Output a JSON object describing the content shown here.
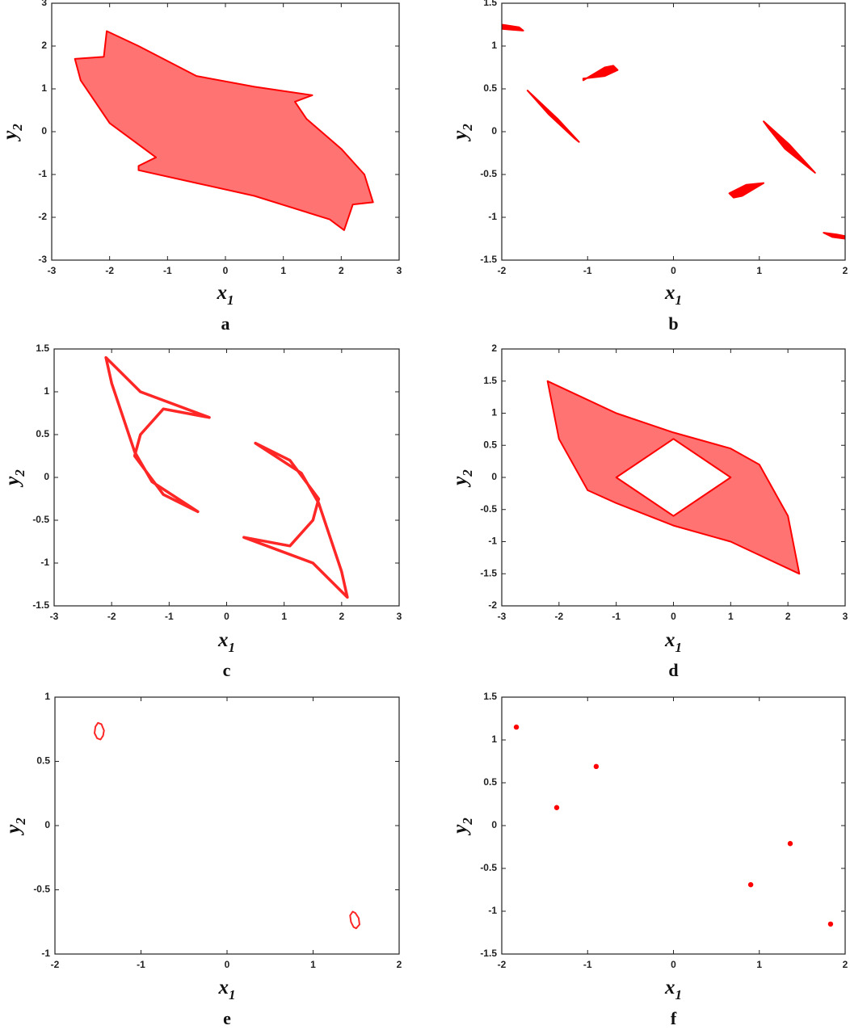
{
  "chart_data": [
    {
      "type": "scatter",
      "label": "a",
      "xlabel": [
        "x",
        "1"
      ],
      "ylabel": [
        "y",
        "2"
      ],
      "xlim": [
        -3,
        3
      ],
      "ylim": [
        -3,
        3
      ],
      "xticks": [
        -3,
        -2,
        -1,
        0,
        1,
        2,
        3
      ],
      "yticks": [
        -3,
        -2,
        -1,
        0,
        1,
        2,
        3
      ],
      "series": [
        {
          "color": "#ff0000",
          "mode": "area",
          "x": [
            -2.6,
            -2.1,
            -2.05,
            -1.5,
            -0.5,
            0.5,
            1.5,
            1.2,
            1.4,
            2.0,
            2.4,
            2.55,
            2.2,
            2.05,
            1.8,
            0.5,
            -0.5,
            -1.5,
            -1.5,
            -1.2,
            -2.0,
            -2.5
          ],
          "y": [
            1.7,
            1.75,
            2.35,
            2.0,
            1.3,
            1.05,
            0.85,
            0.7,
            0.3,
            -0.4,
            -1.0,
            -1.65,
            -1.7,
            -2.3,
            -2.05,
            -1.5,
            -1.2,
            -0.9,
            -0.8,
            -0.6,
            0.2,
            1.2
          ]
        }
      ]
    },
    {
      "type": "scatter",
      "label": "b",
      "xlabel": [
        "x",
        "1"
      ],
      "ylabel": [
        "y",
        "2"
      ],
      "xlim": [
        -2,
        2
      ],
      "ylim": [
        -1.5,
        1.5
      ],
      "xticks": [
        -2,
        -1,
        0,
        1,
        2
      ],
      "yticks": [
        -1.5,
        -1,
        -0.5,
        0,
        0.5,
        1,
        1.5
      ],
      "series": [
        {
          "color": "#ff0000",
          "mode": "solid",
          "x": [
            -2,
            -1.8,
            -1.75,
            -2,
            null,
            -1.05,
            -0.8,
            -0.7,
            -0.65,
            -0.8,
            -1.05,
            null,
            -1.7,
            -1.35,
            -1.1,
            -1.15,
            -1.45,
            null,
            1.05,
            1.35,
            1.65,
            1.3,
            1.1,
            null,
            0.65,
            0.85,
            1.05,
            0.8,
            0.7,
            null,
            1.75,
            1.9,
            2,
            2,
            1.85
          ],
          "y": [
            1.25,
            1.22,
            1.18,
            1.2,
            null,
            0.6,
            0.75,
            0.77,
            0.72,
            0.65,
            0.62,
            null,
            0.48,
            0.15,
            -0.12,
            -0.08,
            0.2,
            null,
            0.12,
            -0.15,
            -0.48,
            -0.2,
            0.05,
            null,
            -0.72,
            -0.62,
            -0.6,
            -0.75,
            -0.77,
            null,
            -1.18,
            -1.2,
            -1.22,
            -1.25,
            -1.23
          ]
        }
      ]
    },
    {
      "type": "scatter",
      "label": "c",
      "xlabel": [
        "x",
        "1"
      ],
      "ylabel": [
        "y",
        "2"
      ],
      "xlim": [
        -3,
        3
      ],
      "ylim": [
        -1.5,
        1.5
      ],
      "xticks": [
        -3,
        -2,
        -1,
        0,
        1,
        2,
        3
      ],
      "yticks": [
        -1.5,
        -1,
        -0.5,
        0,
        0.5,
        1,
        1.5
      ],
      "series": [
        {
          "color": "#ff0000",
          "mode": "outline",
          "x": [
            -2.1,
            -1.5,
            -0.3,
            -1.1,
            -1.5,
            -1.6,
            -1.1,
            -0.5,
            -1.3,
            -1.6,
            -2.0,
            null,
            2.1,
            1.5,
            0.3,
            1.1,
            1.5,
            1.6,
            1.1,
            0.5,
            1.3,
            1.6,
            2.0
          ],
          "y": [
            1.4,
            1.0,
            0.7,
            0.8,
            0.5,
            0.25,
            -0.2,
            -0.4,
            -0.05,
            0.3,
            1.1,
            null,
            -1.4,
            -1.0,
            -0.7,
            -0.8,
            -0.5,
            -0.25,
            0.2,
            0.4,
            0.05,
            -0.3,
            -1.1
          ]
        }
      ]
    },
    {
      "type": "scatter",
      "label": "d",
      "xlabel": [
        "x",
        "1"
      ],
      "ylabel": [
        "y",
        "2"
      ],
      "xlim": [
        -3,
        3
      ],
      "ylim": [
        -2,
        2
      ],
      "xticks": [
        -3,
        -2,
        -1,
        0,
        1,
        2,
        3
      ],
      "yticks": [
        -2,
        -1.5,
        -1,
        -0.5,
        0,
        0.5,
        1,
        1.5,
        2
      ],
      "series": [
        {
          "color": "#ff0000",
          "mode": "area",
          "x": [
            -2.2,
            -1,
            0,
            1,
            1.5,
            2.0,
            2.2,
            1,
            0,
            -1,
            -1.5,
            -2.0,
            null,
            0,
            1,
            0,
            -1
          ],
          "y": [
            1.5,
            1.0,
            0.7,
            0.45,
            0.2,
            -0.6,
            -1.5,
            -1.0,
            -0.75,
            -0.4,
            -0.2,
            0.6,
            null,
            0.6,
            0.0,
            -0.6,
            0.0
          ]
        }
      ]
    },
    {
      "type": "scatter",
      "label": "e",
      "xlabel": [
        "x",
        "1"
      ],
      "ylabel": [
        "y",
        "2"
      ],
      "xlim": [
        -2,
        2
      ],
      "ylim": [
        -1,
        1
      ],
      "xticks": [
        -2,
        -1,
        0,
        1,
        2
      ],
      "yticks": [
        -1,
        -0.5,
        0,
        0.5,
        1
      ],
      "series": [
        {
          "color": "#ff0000",
          "mode": "outline",
          "x": [
            -1.5,
            -1.46,
            -1.43,
            -1.44,
            -1.47,
            -1.51,
            -1.54,
            -1.53,
            null,
            1.5,
            1.54,
            1.53,
            1.49,
            1.46,
            1.43,
            1.44,
            1.47
          ],
          "y": [
            0.8,
            0.79,
            0.74,
            0.7,
            0.67,
            0.68,
            0.72,
            0.77,
            null,
            -0.8,
            -0.77,
            -0.72,
            -0.68,
            -0.67,
            -0.7,
            -0.75,
            -0.79
          ]
        }
      ]
    },
    {
      "type": "scatter",
      "label": "f",
      "xlabel": [
        "x",
        "1"
      ],
      "ylabel": [
        "y",
        "2"
      ],
      "xlim": [
        -2,
        2
      ],
      "ylim": [
        -1.5,
        1.5
      ],
      "xticks": [
        -2,
        -1,
        0,
        1,
        2
      ],
      "yticks": [
        -1.5,
        -1,
        -0.5,
        0,
        0.5,
        1,
        1.5
      ],
      "series": [
        {
          "color": "#ff0000",
          "mode": "markers",
          "x": [
            -1.83,
            -1.36,
            -0.9,
            0.9,
            1.36,
            1.83
          ],
          "y": [
            1.15,
            0.21,
            0.69,
            -0.69,
            -0.21,
            -1.15
          ]
        }
      ]
    }
  ]
}
